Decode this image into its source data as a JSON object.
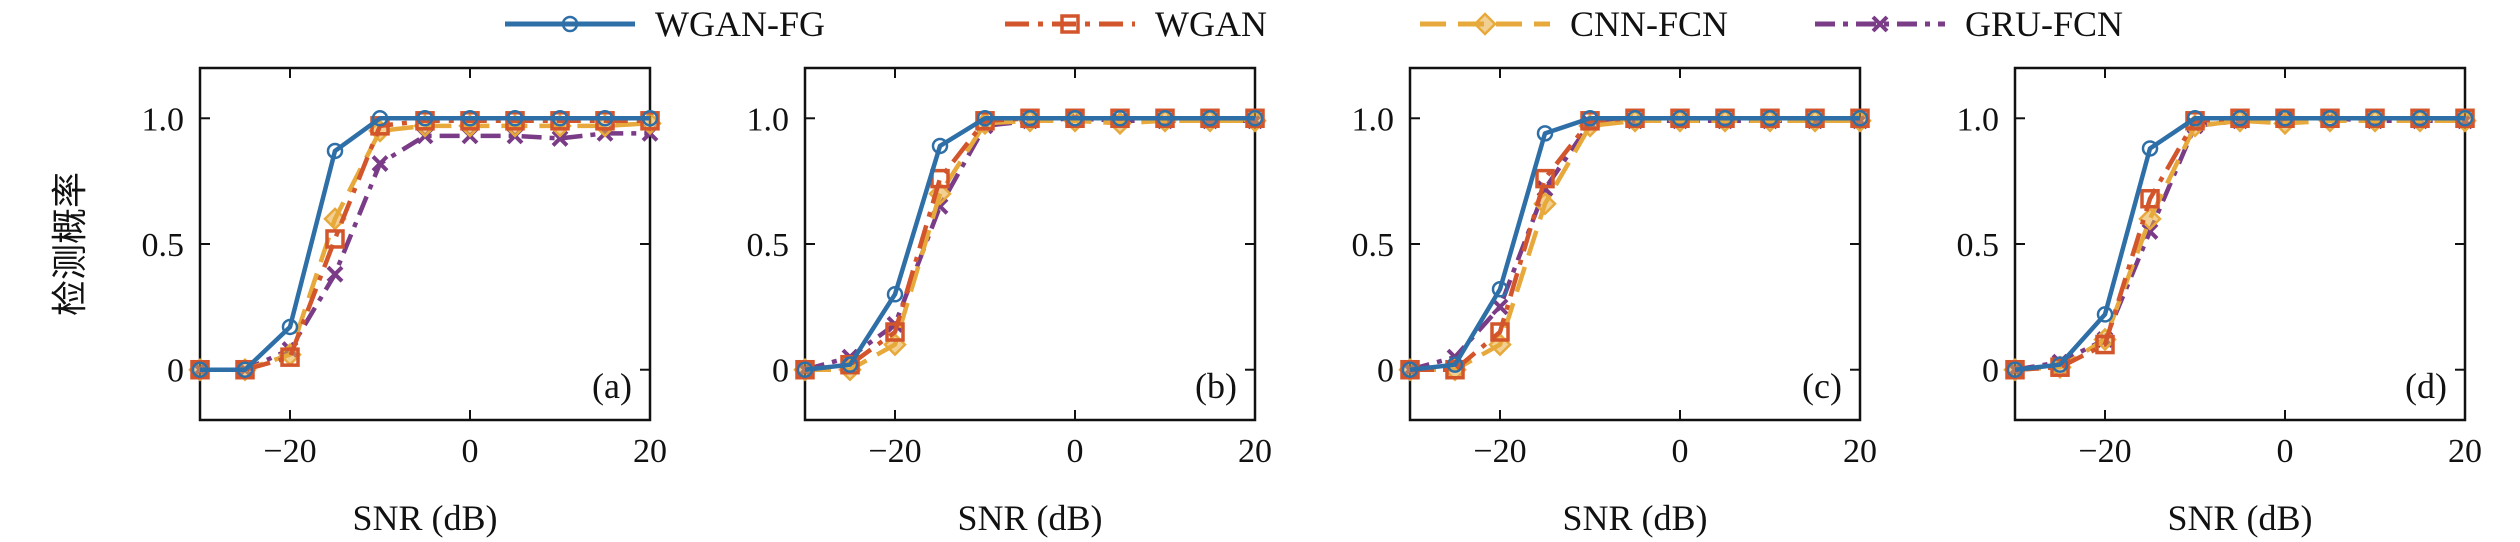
{
  "styles": {
    "WGAN-FG": {
      "color": "#2e6fa8",
      "dash": "",
      "marker": "circle"
    },
    "WGAN": {
      "color": "#d3552b",
      "dash": "24,9,5,9",
      "marker": "square"
    },
    "CNN-FCN": {
      "color": "#e7a93b",
      "dash": "26,12",
      "marker": "diamond"
    },
    "GRU-FCN": {
      "color": "#7a3b87",
      "dash": "20,8,5,8",
      "marker": "x"
    }
  },
  "legend": [
    "WGAN-FG",
    "WGAN",
    "CNN-FCN",
    "GRU-FCN"
  ],
  "chart_data": [
    {
      "type": "line",
      "panel_label": "(a)",
      "xlabel": "SNR (dB)",
      "ylabel": "检测概率",
      "xlim": [
        -30,
        20
      ],
      "ylim": [
        -0.2,
        1.2
      ],
      "xticks": [
        -20,
        0,
        20
      ],
      "xtick_labels": [
        "−20",
        "0",
        "20"
      ],
      "yticks": [
        0,
        0.5,
        1.0
      ],
      "ytick_labels": [
        "0",
        "0.5",
        "1.0"
      ],
      "x": [
        -30,
        -25,
        -20,
        -15,
        -10,
        -5,
        0,
        5,
        10,
        15,
        20
      ],
      "series": [
        {
          "name": "WGAN-FG",
          "values": [
            0,
            0,
            0.17,
            0.87,
            1.0,
            1.0,
            1.0,
            1.0,
            1.0,
            1.0,
            1.0
          ]
        },
        {
          "name": "WGAN",
          "values": [
            0,
            0,
            0.05,
            0.52,
            0.97,
            0.99,
            0.99,
            0.99,
            0.99,
            0.99,
            0.99
          ]
        },
        {
          "name": "CNN-FCN",
          "values": [
            0,
            0,
            0.06,
            0.6,
            0.95,
            0.97,
            0.97,
            0.97,
            0.97,
            0.97,
            0.98
          ]
        },
        {
          "name": "GRU-FCN",
          "values": [
            0,
            0,
            0.08,
            0.38,
            0.82,
            0.93,
            0.93,
            0.93,
            0.92,
            0.94,
            0.94
          ]
        }
      ]
    },
    {
      "type": "line",
      "panel_label": "(b)",
      "xlabel": "SNR (dB)",
      "ylabel": "",
      "xlim": [
        -30,
        20
      ],
      "ylim": [
        -0.2,
        1.2
      ],
      "xticks": [
        -20,
        0,
        20
      ],
      "xtick_labels": [
        "−20",
        "0",
        "20"
      ],
      "yticks": [
        0,
        0.5,
        1.0
      ],
      "ytick_labels": [
        "0",
        "0.5",
        "1.0"
      ],
      "x": [
        -30,
        -25,
        -20,
        -15,
        -10,
        -5,
        0,
        5,
        10,
        15,
        20
      ],
      "series": [
        {
          "name": "WGAN-FG",
          "values": [
            0,
            0.02,
            0.3,
            0.89,
            1.0,
            1.0,
            1.0,
            1.0,
            1.0,
            1.0,
            1.0
          ]
        },
        {
          "name": "WGAN",
          "values": [
            0,
            0.02,
            0.15,
            0.76,
            0.99,
            1.0,
            1.0,
            1.0,
            1.0,
            1.0,
            1.0
          ]
        },
        {
          "name": "CNN-FCN",
          "values": [
            0,
            0,
            0.1,
            0.7,
            0.98,
            0.99,
            0.99,
            0.98,
            0.99,
            0.99,
            0.99
          ]
        },
        {
          "name": "GRU-FCN",
          "values": [
            0,
            0.05,
            0.18,
            0.65,
            0.97,
            0.99,
            1.0,
            0.99,
            0.99,
            0.99,
            0.99
          ]
        }
      ]
    },
    {
      "type": "line",
      "panel_label": "(c)",
      "xlabel": "SNR (dB)",
      "ylabel": "",
      "xlim": [
        -30,
        20
      ],
      "ylim": [
        -0.2,
        1.2
      ],
      "xticks": [
        -20,
        0,
        20
      ],
      "xtick_labels": [
        "−20",
        "0",
        "20"
      ],
      "yticks": [
        0,
        0.5,
        1.0
      ],
      "ytick_labels": [
        "0",
        "0.5",
        "1.0"
      ],
      "x": [
        -30,
        -25,
        -20,
        -15,
        -10,
        -5,
        0,
        5,
        10,
        15,
        20
      ],
      "series": [
        {
          "name": "WGAN-FG",
          "values": [
            0,
            0.02,
            0.32,
            0.94,
            1.0,
            1.0,
            1.0,
            1.0,
            1.0,
            1.0,
            1.0
          ]
        },
        {
          "name": "WGAN",
          "values": [
            0,
            0,
            0.15,
            0.76,
            0.99,
            1.0,
            1.0,
            1.0,
            1.0,
            1.0,
            1.0
          ]
        },
        {
          "name": "CNN-FCN",
          "values": [
            0,
            0,
            0.1,
            0.66,
            0.97,
            0.99,
            0.99,
            0.99,
            0.99,
            0.99,
            0.99
          ]
        },
        {
          "name": "GRU-FCN",
          "values": [
            0,
            0.05,
            0.25,
            0.72,
            0.98,
            0.99,
            0.99,
            0.99,
            0.99,
            0.99,
            0.99
          ]
        }
      ]
    },
    {
      "type": "line",
      "panel_label": "(d)",
      "xlabel": "SNR (dB)",
      "ylabel": "",
      "xlim": [
        -30,
        20
      ],
      "ylim": [
        -0.2,
        1.2
      ],
      "xticks": [
        -20,
        0,
        20
      ],
      "xtick_labels": [
        "−20",
        "0",
        "20"
      ],
      "yticks": [
        0,
        0.5,
        1.0
      ],
      "ytick_labels": [
        "0",
        "0.5",
        "1.0"
      ],
      "x": [
        -30,
        -25,
        -20,
        -15,
        -10,
        -5,
        0,
        5,
        10,
        15,
        20
      ],
      "series": [
        {
          "name": "WGAN-FG",
          "values": [
            0,
            0.02,
            0.22,
            0.88,
            1.0,
            1.0,
            1.0,
            1.0,
            1.0,
            1.0,
            1.0
          ]
        },
        {
          "name": "WGAN",
          "values": [
            0,
            0.01,
            0.1,
            0.68,
            0.99,
            1.0,
            1.0,
            1.0,
            1.0,
            1.0,
            1.0
          ]
        },
        {
          "name": "CNN-FCN",
          "values": [
            0,
            0.01,
            0.12,
            0.6,
            0.97,
            0.99,
            0.98,
            0.99,
            0.99,
            0.99,
            0.99
          ]
        },
        {
          "name": "GRU-FCN",
          "values": [
            0,
            0.03,
            0.12,
            0.55,
            0.97,
            0.99,
            1.0,
            1.0,
            0.99,
            0.99,
            0.99
          ]
        }
      ]
    }
  ]
}
